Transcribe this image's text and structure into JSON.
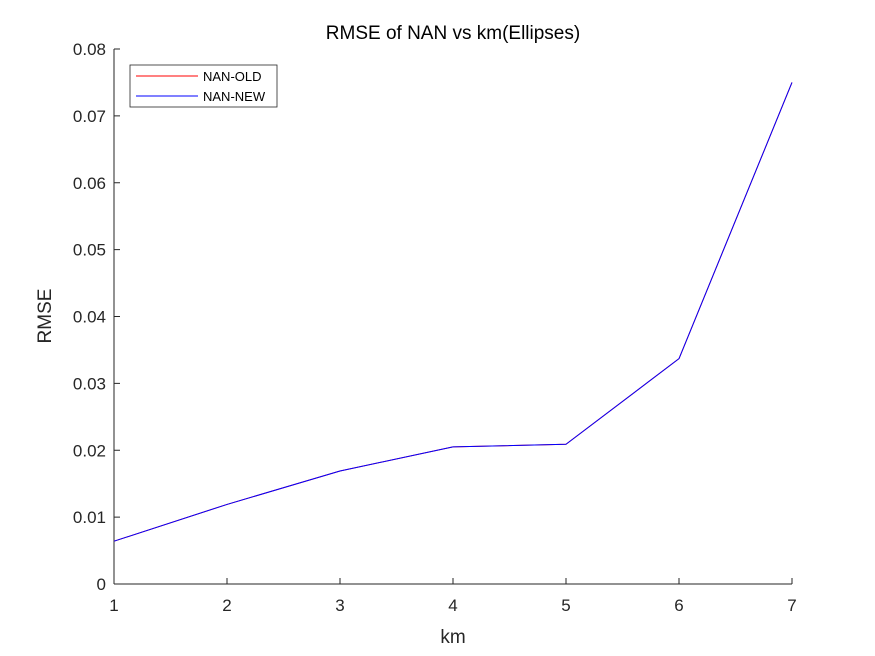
{
  "chart_data": {
    "type": "line",
    "title": "RMSE of NAN vs km(Ellipses)",
    "xlabel": "km",
    "ylabel": "RMSE",
    "x": [
      1,
      2,
      3,
      4,
      5,
      6,
      7
    ],
    "xlim": [
      1,
      7
    ],
    "ylim": [
      0,
      0.08
    ],
    "xticks": [
      "1",
      "2",
      "3",
      "4",
      "5",
      "6",
      "7"
    ],
    "yticks": [
      "0",
      "0.01",
      "0.02",
      "0.03",
      "0.04",
      "0.05",
      "0.06",
      "0.07",
      "0.08"
    ],
    "grid": false,
    "legend_position": "top-left",
    "series": [
      {
        "name": "NAN-OLD",
        "color": "#ff0000",
        "values": [
          0.0064,
          0.0119,
          0.0169,
          0.0205,
          0.0209,
          0.0337,
          0.075
        ]
      },
      {
        "name": "NAN-NEW",
        "color": "#0000ff",
        "values": [
          0.0064,
          0.0119,
          0.0169,
          0.0205,
          0.0209,
          0.0337,
          0.075
        ]
      }
    ]
  }
}
